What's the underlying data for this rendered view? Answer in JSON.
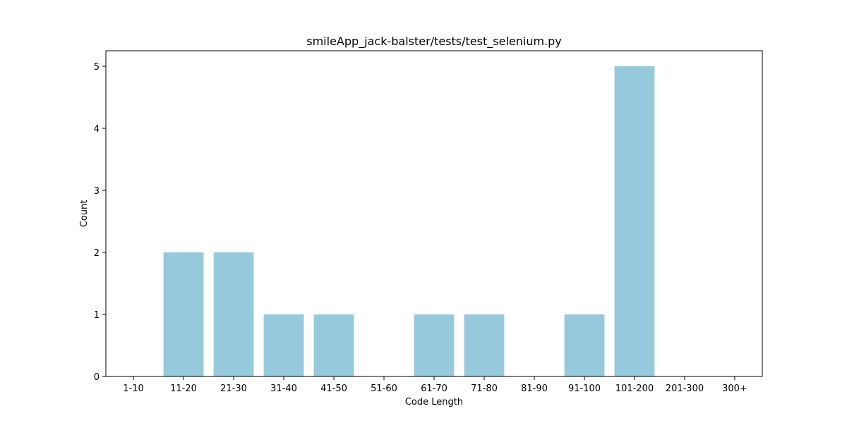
{
  "chart_data": {
    "type": "bar",
    "title": "smileApp_jack-balster/tests/test_selenium.py",
    "xlabel": "Code Length",
    "ylabel": "Count",
    "categories": [
      "1-10",
      "11-20",
      "21-30",
      "31-40",
      "41-50",
      "51-60",
      "61-70",
      "71-80",
      "81-90",
      "91-100",
      "101-200",
      "201-300",
      "300+"
    ],
    "values": [
      0,
      2,
      2,
      1,
      1,
      0,
      1,
      1,
      0,
      1,
      5,
      0,
      0
    ],
    "ylim": [
      0,
      5.25
    ],
    "yticks": [
      0,
      1,
      2,
      3,
      4,
      5
    ],
    "bar_color": "#96c9dc",
    "grid": false
  }
}
